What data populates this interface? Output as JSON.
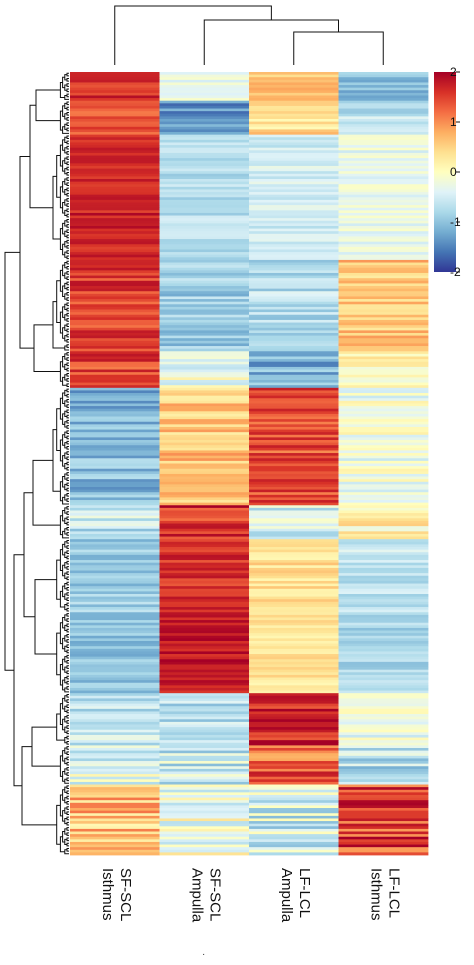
{
  "chart_data": {
    "type": "heatmap",
    "title": "",
    "columns": [
      "SF-SCL Isthmus",
      "SF-SCL Ampulla",
      "LF-LCL Ampulla",
      "LF-LCL Isthmus"
    ],
    "column_labels": [
      {
        "line1": "SF-SCL",
        "line2": "Isthmus"
      },
      {
        "line1": "SF-SCL",
        "line2": "Ampulla"
      },
      {
        "line1": "LF-LCL",
        "line2": "Ampulla"
      },
      {
        "line1": "LF-LCL",
        "line2": "Isthmus"
      }
    ],
    "colorscale": {
      "min": -2,
      "max": 2,
      "ticks": [
        "2",
        "1",
        "0",
        "-1",
        "-2"
      ],
      "colors": [
        "#313695",
        "#4575b4",
        "#74add1",
        "#abd9e9",
        "#e0f3f8",
        "#ffffbf",
        "#fee090",
        "#fdae61",
        "#f46d43",
        "#d73027",
        "#a50026"
      ]
    },
    "row_clusters": [
      {
        "fraction": 0.035,
        "values": [
          1.6,
          -0.3,
          0.6,
          -1.1
        ],
        "noise": 0.3
      },
      {
        "fraction": 0.045,
        "values": [
          1.3,
          -1.4,
          0.4,
          -0.6
        ],
        "noise": 0.35
      },
      {
        "fraction": 0.16,
        "values": [
          1.7,
          -0.7,
          -0.5,
          -0.3
        ],
        "noise": 0.25
      },
      {
        "fraction": 0.115,
        "values": [
          1.5,
          -0.9,
          -0.7,
          0.6
        ],
        "noise": 0.35
      },
      {
        "fraction": 0.05,
        "values": [
          1.4,
          -0.2,
          -1.2,
          0.0
        ],
        "noise": 0.45
      },
      {
        "fraction": 0.15,
        "values": [
          -1.1,
          0.6,
          1.4,
          -0.2
        ],
        "noise": 0.4
      },
      {
        "fraction": 0.04,
        "values": [
          -0.6,
          1.6,
          -0.5,
          0.2
        ],
        "noise": 0.45
      },
      {
        "fraction": 0.095,
        "values": [
          -0.9,
          1.6,
          0.4,
          -0.6
        ],
        "noise": 0.3
      },
      {
        "fraction": 0.105,
        "values": [
          -1.0,
          1.8,
          0.3,
          -0.8
        ],
        "noise": 0.25
      },
      {
        "fraction": 0.065,
        "values": [
          -0.6,
          -0.7,
          1.7,
          -0.2
        ],
        "noise": 0.4
      },
      {
        "fraction": 0.05,
        "values": [
          -0.4,
          -0.6,
          1.3,
          -0.7
        ],
        "noise": 0.55
      },
      {
        "fraction": 0.09,
        "values": [
          0.6,
          -0.2,
          -0.5,
          1.5
        ],
        "noise": 0.6
      }
    ],
    "column_dendrogram": {
      "order": [
        0,
        1,
        2,
        3
      ],
      "merges": [
        [
          2,
          3
        ],
        [
          1,
          "m0"
        ],
        [
          0,
          "m1"
        ]
      ]
    }
  }
}
